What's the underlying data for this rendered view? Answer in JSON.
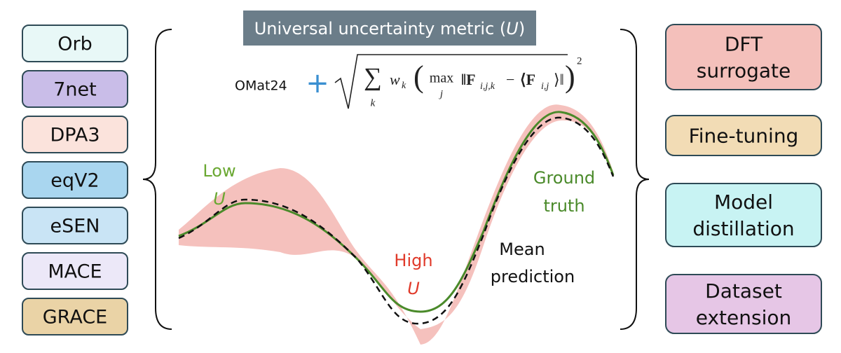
{
  "title": [
    "Universal uncertainty metric (",
    "U",
    ")"
  ],
  "dataset": "OMat24",
  "plus": "+",
  "formula": {
    "sum": "∑",
    "sum_index": "k",
    "weight": "w",
    "weight_index": "k",
    "open": "(",
    "max": "max",
    "max_index": "j",
    "term": "‖F",
    "term_index": "i,j,k",
    "minus": "−",
    "mean": "⟨F",
    "mean_index": "i,j",
    "mean_close": "⟩‖",
    "close": ")",
    "power": "2"
  },
  "models": [
    {
      "label": "Orb",
      "color": "#e8f8f7"
    },
    {
      "label": "7net",
      "color": "#c9bde8"
    },
    {
      "label": "DPA3",
      "color": "#fbe3dc"
    },
    {
      "label": "eqV2",
      "color": "#a9d6ef"
    },
    {
      "label": "eSEN",
      "color": "#c9e4f5"
    },
    {
      "label": "MACE",
      "color": "#ece8f8"
    },
    {
      "label": "GRACE",
      "color": "#ead3a6"
    }
  ],
  "applications": [
    {
      "lines": [
        "DFT",
        "surrogate"
      ],
      "color": "#f4c0bb"
    },
    {
      "lines": [
        "Fine-tuning"
      ],
      "color": "#f2dcb5"
    },
    {
      "lines": [
        "Model",
        "distillation"
      ],
      "color": "#c8f3f3"
    },
    {
      "lines": [
        "Dataset",
        "extension"
      ],
      "color": "#e6c6e6"
    }
  ],
  "annotations": {
    "low": [
      "Low",
      "U"
    ],
    "high": [
      "High",
      "U"
    ],
    "ground_truth": [
      "Ground",
      "truth"
    ],
    "mean_prediction": [
      "Mean",
      "prediction"
    ]
  }
}
